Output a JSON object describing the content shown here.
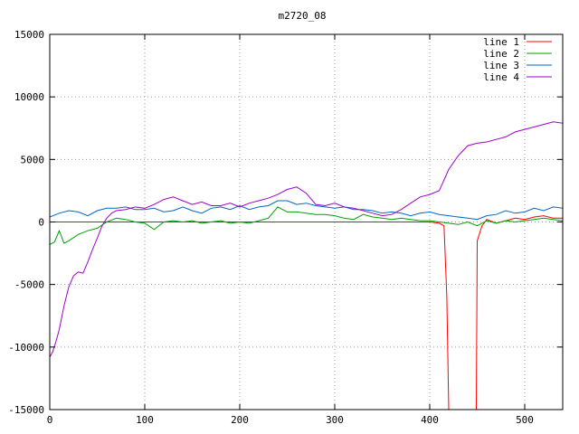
{
  "chart_data": {
    "type": "line",
    "title": "m2720_08",
    "xlabel": "",
    "ylabel": "",
    "xlim": [
      0,
      540
    ],
    "ylim": [
      -15000,
      15000
    ],
    "x_ticks": [
      0,
      100,
      200,
      300,
      400,
      500
    ],
    "y_ticks": [
      -15000,
      -10000,
      -5000,
      0,
      5000,
      10000,
      15000
    ],
    "grid": true,
    "legend_position": "top-right",
    "series": [
      {
        "name": "line 1",
        "color": "#ff0000",
        "x": [
          0,
          100,
          200,
          300,
          380,
          400,
          410,
          415,
          418,
          420,
          421,
          448,
          449,
          450,
          455,
          460,
          470,
          480,
          490,
          500,
          510,
          520,
          530,
          540
        ],
        "values": [
          0,
          0,
          0,
          0,
          0,
          0,
          -100,
          -300,
          -6000,
          -15000,
          -15000,
          -15000,
          -15000,
          -1500,
          -300,
          200,
          -100,
          100,
          300,
          200,
          400,
          500,
          300,
          300
        ]
      },
      {
        "name": "line 2",
        "color": "#00a000",
        "x": [
          0,
          5,
          10,
          15,
          20,
          30,
          40,
          50,
          60,
          70,
          80,
          90,
          100,
          110,
          120,
          130,
          140,
          150,
          160,
          170,
          180,
          190,
          200,
          210,
          220,
          230,
          240,
          250,
          260,
          270,
          280,
          290,
          300,
          310,
          320,
          330,
          340,
          350,
          360,
          370,
          380,
          390,
          400,
          410,
          420,
          430,
          440,
          450,
          460,
          470,
          480,
          490,
          500,
          510,
          520,
          530,
          540
        ],
        "values": [
          -1800,
          -1600,
          -700,
          -1700,
          -1500,
          -1000,
          -700,
          -500,
          0,
          300,
          200,
          0,
          -100,
          -600,
          0,
          100,
          0,
          100,
          -100,
          0,
          100,
          -100,
          0,
          -100,
          100,
          300,
          1200,
          800,
          800,
          700,
          600,
          600,
          500,
          300,
          200,
          600,
          400,
          300,
          200,
          300,
          200,
          100,
          100,
          0,
          -100,
          -200,
          0,
          -300,
          100,
          -100,
          100,
          0,
          100,
          200,
          300,
          200,
          100
        ]
      },
      {
        "name": "line 3",
        "color": "#0066cc",
        "x": [
          0,
          10,
          20,
          30,
          40,
          50,
          60,
          70,
          80,
          90,
          100,
          110,
          120,
          130,
          140,
          150,
          160,
          170,
          180,
          190,
          200,
          210,
          220,
          230,
          240,
          250,
          260,
          270,
          280,
          290,
          300,
          310,
          320,
          330,
          340,
          350,
          360,
          370,
          380,
          390,
          400,
          410,
          420,
          430,
          440,
          450,
          460,
          470,
          480,
          490,
          500,
          510,
          520,
          530,
          540
        ],
        "values": [
          400,
          700,
          900,
          800,
          500,
          900,
          1100,
          1100,
          1200,
          1000,
          1000,
          1100,
          800,
          900,
          1200,
          900,
          700,
          1100,
          1200,
          1000,
          1300,
          1000,
          1200,
          1300,
          1700,
          1700,
          1400,
          1500,
          1300,
          1200,
          1100,
          1200,
          1000,
          1000,
          900,
          700,
          800,
          700,
          500,
          700,
          800,
          600,
          500,
          400,
          300,
          200,
          500,
          600,
          900,
          700,
          800,
          1100,
          900,
          1200,
          1100
        ]
      },
      {
        "name": "line 4",
        "color": "#a000d0",
        "x": [
          0,
          3,
          6,
          10,
          15,
          20,
          25,
          30,
          35,
          40,
          45,
          50,
          55,
          60,
          65,
          70,
          80,
          90,
          100,
          110,
          120,
          130,
          140,
          150,
          160,
          170,
          180,
          190,
          200,
          210,
          220,
          230,
          240,
          250,
          260,
          270,
          280,
          290,
          300,
          310,
          320,
          330,
          340,
          350,
          360,
          370,
          380,
          390,
          400,
          410,
          420,
          430,
          440,
          450,
          460,
          470,
          480,
          490,
          500,
          510,
          520,
          530,
          540
        ],
        "values": [
          -10800,
          -10400,
          -9700,
          -8600,
          -6700,
          -5200,
          -4300,
          -4000,
          -4100,
          -3200,
          -2200,
          -1300,
          -300,
          300,
          700,
          900,
          1000,
          1200,
          1100,
          1400,
          1800,
          2000,
          1700,
          1400,
          1600,
          1300,
          1300,
          1500,
          1200,
          1500,
          1700,
          1900,
          2200,
          2600,
          2800,
          2300,
          1400,
          1300,
          1500,
          1200,
          1100,
          900,
          700,
          500,
          600,
          1000,
          1500,
          2000,
          2200,
          2500,
          4200,
          5300,
          6100,
          6300,
          6400,
          6600,
          6800,
          7200,
          7400,
          7600,
          7800,
          8000,
          7900
        ]
      }
    ]
  }
}
